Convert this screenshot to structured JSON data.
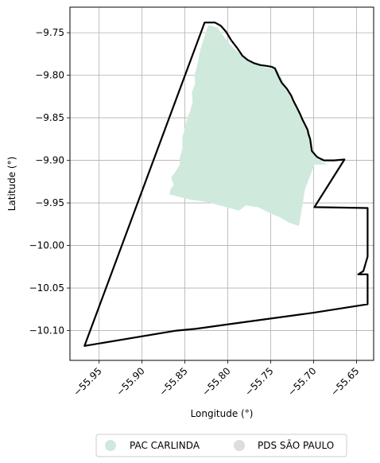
{
  "chart_data": {
    "type": "map",
    "xlabel": "Longitude (°)",
    "ylabel": "Latitude (°)",
    "xlim": [
      -55.984,
      -55.63
    ],
    "ylim": [
      -10.135,
      -9.72
    ],
    "x_ticks": [
      {
        "value": -55.95,
        "label": "−55.95"
      },
      {
        "value": -55.9,
        "label": "−55.90"
      },
      {
        "value": -55.85,
        "label": "−55.85"
      },
      {
        "value": -55.8,
        "label": "−55.80"
      },
      {
        "value": -55.75,
        "label": "−55.75"
      },
      {
        "value": -55.7,
        "label": "−55.70"
      },
      {
        "value": -55.65,
        "label": "−55.65"
      }
    ],
    "y_ticks": [
      {
        "value": -9.75,
        "label": "−9.75"
      },
      {
        "value": -9.8,
        "label": "−9.80"
      },
      {
        "value": -9.85,
        "label": "−9.85"
      },
      {
        "value": -9.9,
        "label": "−9.90"
      },
      {
        "value": -9.95,
        "label": "−9.95"
      },
      {
        "value": -10.0,
        "label": "−10.00"
      },
      {
        "value": -10.05,
        "label": "−10.05"
      },
      {
        "value": -10.1,
        "label": "−10.10"
      }
    ],
    "grid": true,
    "legend_position": "bottom",
    "layers": [
      {
        "name": "PAC CARLINDA",
        "color": "#cfeadc",
        "geometry": "polygon",
        "style": "filled",
        "coordinates": [
          [
            -55.822,
            -9.741
          ],
          [
            -55.812,
            -9.744
          ],
          [
            -55.805,
            -9.754
          ],
          [
            -55.797,
            -9.764
          ],
          [
            -55.79,
            -9.771
          ],
          [
            -55.783,
            -9.777
          ],
          [
            -55.776,
            -9.783
          ],
          [
            -55.769,
            -9.787
          ],
          [
            -55.762,
            -9.789
          ],
          [
            -55.755,
            -9.791
          ],
          [
            -55.75,
            -9.792
          ],
          [
            -55.745,
            -9.792
          ],
          [
            -55.74,
            -9.797
          ],
          [
            -55.736,
            -9.806
          ],
          [
            -55.731,
            -9.815
          ],
          [
            -55.727,
            -9.823
          ],
          [
            -55.723,
            -9.829
          ],
          [
            -55.721,
            -9.834
          ],
          [
            -55.718,
            -9.839
          ],
          [
            -55.715,
            -9.845
          ],
          [
            -55.713,
            -9.852
          ],
          [
            -55.71,
            -9.857
          ],
          [
            -55.707,
            -9.862
          ],
          [
            -55.705,
            -9.867
          ],
          [
            -55.703,
            -9.873
          ],
          [
            -55.702,
            -9.88
          ],
          [
            -55.701,
            -9.887
          ],
          [
            -55.697,
            -9.895
          ],
          [
            -55.69,
            -9.902
          ],
          [
            -55.683,
            -9.905
          ],
          [
            -55.699,
            -9.905
          ],
          [
            -55.71,
            -9.934
          ],
          [
            -55.717,
            -9.977
          ],
          [
            -55.729,
            -9.973
          ],
          [
            -55.739,
            -9.967
          ],
          [
            -55.751,
            -9.962
          ],
          [
            -55.765,
            -9.955
          ],
          [
            -55.779,
            -9.953
          ],
          [
            -55.787,
            -9.959
          ],
          [
            -55.802,
            -9.955
          ],
          [
            -55.824,
            -9.949
          ],
          [
            -55.845,
            -9.946
          ],
          [
            -55.868,
            -9.94
          ],
          [
            -55.867,
            -9.934
          ],
          [
            -55.863,
            -9.929
          ],
          [
            -55.866,
            -9.92
          ],
          [
            -55.86,
            -9.912
          ],
          [
            -55.856,
            -9.905
          ],
          [
            -55.856,
            -9.897
          ],
          [
            -55.853,
            -9.886
          ],
          [
            -55.853,
            -9.873
          ],
          [
            -55.851,
            -9.866
          ],
          [
            -55.848,
            -9.853
          ],
          [
            -55.844,
            -9.842
          ],
          [
            -55.841,
            -9.832
          ],
          [
            -55.842,
            -9.82
          ],
          [
            -55.838,
            -9.81
          ],
          [
            -55.839,
            -9.8
          ],
          [
            -55.836,
            -9.79
          ],
          [
            -55.834,
            -9.78
          ],
          [
            -55.832,
            -9.77
          ],
          [
            -55.829,
            -9.76
          ],
          [
            -55.826,
            -9.751
          ],
          [
            -55.824,
            -9.744
          ]
        ]
      },
      {
        "name": "PDS SÃO PAULO",
        "color": "#dddddd",
        "geometry": "polygon",
        "style": "outline",
        "outline_color": "#000000",
        "coordinates": [
          [
            -55.827,
            -9.738
          ],
          [
            -55.815,
            -9.738
          ],
          [
            -55.808,
            -9.742
          ],
          [
            -55.802,
            -9.749
          ],
          [
            -55.796,
            -9.759
          ],
          [
            -55.789,
            -9.768
          ],
          [
            -55.783,
            -9.777
          ],
          [
            -55.777,
            -9.782
          ],
          [
            -55.769,
            -9.786
          ],
          [
            -55.762,
            -9.788
          ],
          [
            -55.755,
            -9.789
          ],
          [
            -55.749,
            -9.79
          ],
          [
            -55.745,
            -9.792
          ],
          [
            -55.741,
            -9.801
          ],
          [
            -55.737,
            -9.809
          ],
          [
            -55.731,
            -9.816
          ],
          [
            -55.726,
            -9.824
          ],
          [
            -55.724,
            -9.829
          ],
          [
            -55.722,
            -9.833
          ],
          [
            -55.719,
            -9.839
          ],
          [
            -55.716,
            -9.845
          ],
          [
            -55.713,
            -9.852
          ],
          [
            -55.71,
            -9.858
          ],
          [
            -55.707,
            -9.864
          ],
          [
            -55.706,
            -9.869
          ],
          [
            -55.704,
            -9.875
          ],
          [
            -55.703,
            -9.882
          ],
          [
            -55.702,
            -9.889
          ],
          [
            -55.696,
            -9.896
          ],
          [
            -55.688,
            -9.9
          ],
          [
            -55.676,
            -9.9
          ],
          [
            -55.664,
            -9.899
          ],
          [
            -55.699,
            -9.955
          ],
          [
            -55.637,
            -9.956
          ],
          [
            -55.637,
            -10.013
          ],
          [
            -55.642,
            -10.03
          ],
          [
            -55.648,
            -10.034
          ],
          [
            -55.637,
            -10.034
          ],
          [
            -55.637,
            -10.069
          ],
          [
            -55.7,
            -10.079
          ],
          [
            -55.795,
            -10.092
          ],
          [
            -55.838,
            -10.098
          ],
          [
            -55.86,
            -10.1
          ],
          [
            -55.967,
            -10.118
          ]
        ]
      }
    ]
  },
  "legend": {
    "items": [
      {
        "label": "PAC CARLINDA",
        "color": "#cfeadc"
      },
      {
        "label": "PDS SÃO PAULO",
        "color": "#dddddd"
      }
    ]
  }
}
